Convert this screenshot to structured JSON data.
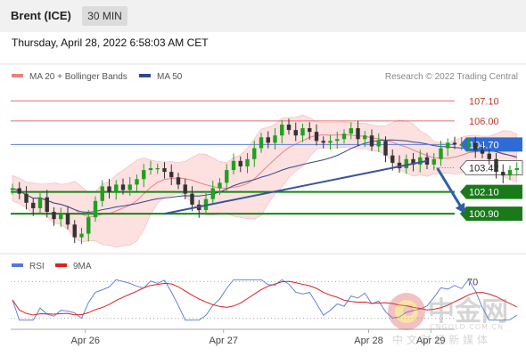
{
  "header": {
    "instrument": "Brent (ICE)",
    "timeframe": "30 MIN"
  },
  "timestamp": "Thursday, April 28, 2022 6:58:03 AM CET",
  "credit": "Research © 2022 Trading Central",
  "watermark": {
    "main": "中金网",
    "sub": "CNGOLD.COM.CN",
    "tagline": "中 文 财 经 新 媒 体"
  },
  "colors": {
    "ma20": "#f08080",
    "ma50": "#2e4a8b",
    "bollinger_fill": "#fde0e0",
    "support": "#118811",
    "resistance": "#e37070",
    "pivot": "#5b7fd8",
    "trend": "#3a5594",
    "arrow": "#2e5fa8",
    "rsi": "#5577dd",
    "rsi_ma": "#e02020",
    "up_candle": "#20a020",
    "down_candle": "#333333"
  },
  "chart_data": [
    {
      "type": "candlestick",
      "x_ticks": [
        "Apr 26",
        "Apr 27",
        "Apr 28",
        "Apr 29"
      ],
      "ylim": [
        98.8,
        108.0
      ],
      "legend": [
        {
          "name": "MA 20 + Bollinger Bands",
          "color": "#f08080"
        },
        {
          "name": "MA 50",
          "color": "#2e4a8b"
        }
      ],
      "legend_position": "top-left",
      "levels": [
        {
          "value": 107.1,
          "label": "107.10",
          "kind": "resistance"
        },
        {
          "value": 106.0,
          "label": "106.00",
          "kind": "resistance"
        },
        {
          "value": 104.7,
          "label": "104.70",
          "kind": "pivot"
        },
        {
          "value": 103.42,
          "label": "103.42",
          "kind": "last"
        },
        {
          "value": 102.1,
          "label": "102.10",
          "kind": "support"
        },
        {
          "value": 100.9,
          "label": "100.90",
          "kind": "support"
        }
      ],
      "trendline": {
        "from": {
          "x": 22,
          "y": 100.9
        },
        "to": {
          "x": 60,
          "y": 103.8
        }
      },
      "arrow": {
        "from": {
          "x": 61.5,
          "y": 103.4
        },
        "to": {
          "x": 65.5,
          "y": 100.9
        }
      },
      "closes": [
        102.3,
        102.0,
        101.5,
        101.2,
        101.8,
        101.0,
        100.6,
        100.9,
        100.3,
        99.6,
        99.8,
        100.7,
        101.6,
        102.4,
        102.1,
        102.5,
        102.2,
        102.5,
        102.8,
        103.3,
        103.4,
        103.4,
        103.2,
        102.9,
        102.5,
        102.0,
        101.4,
        101.1,
        101.7,
        102.3,
        102.6,
        103.3,
        103.8,
        103.5,
        103.9,
        104.5,
        105.1,
        104.8,
        105.2,
        105.8,
        105.5,
        105.2,
        105.6,
        105.4,
        104.9,
        104.8,
        104.9,
        105.0,
        105.3,
        105.6,
        105.0,
        105.2,
        104.6,
        104.9,
        104.1,
        103.7,
        103.4,
        103.9,
        103.6,
        104.0,
        103.6,
        103.9,
        104.5,
        104.8,
        104.7,
        104.7,
        104.8,
        104.4,
        104.2,
        103.9,
        103.2,
        103.0,
        103.3,
        103.4
      ]
    },
    {
      "type": "line",
      "legend": [
        {
          "name": "RSI",
          "color": "#5577dd"
        },
        {
          "name": "9MA",
          "color": "#e02020"
        }
      ],
      "levels": [
        {
          "value": 70,
          "label": "70"
        }
      ],
      "ylim": [
        20,
        80
      ]
    }
  ]
}
